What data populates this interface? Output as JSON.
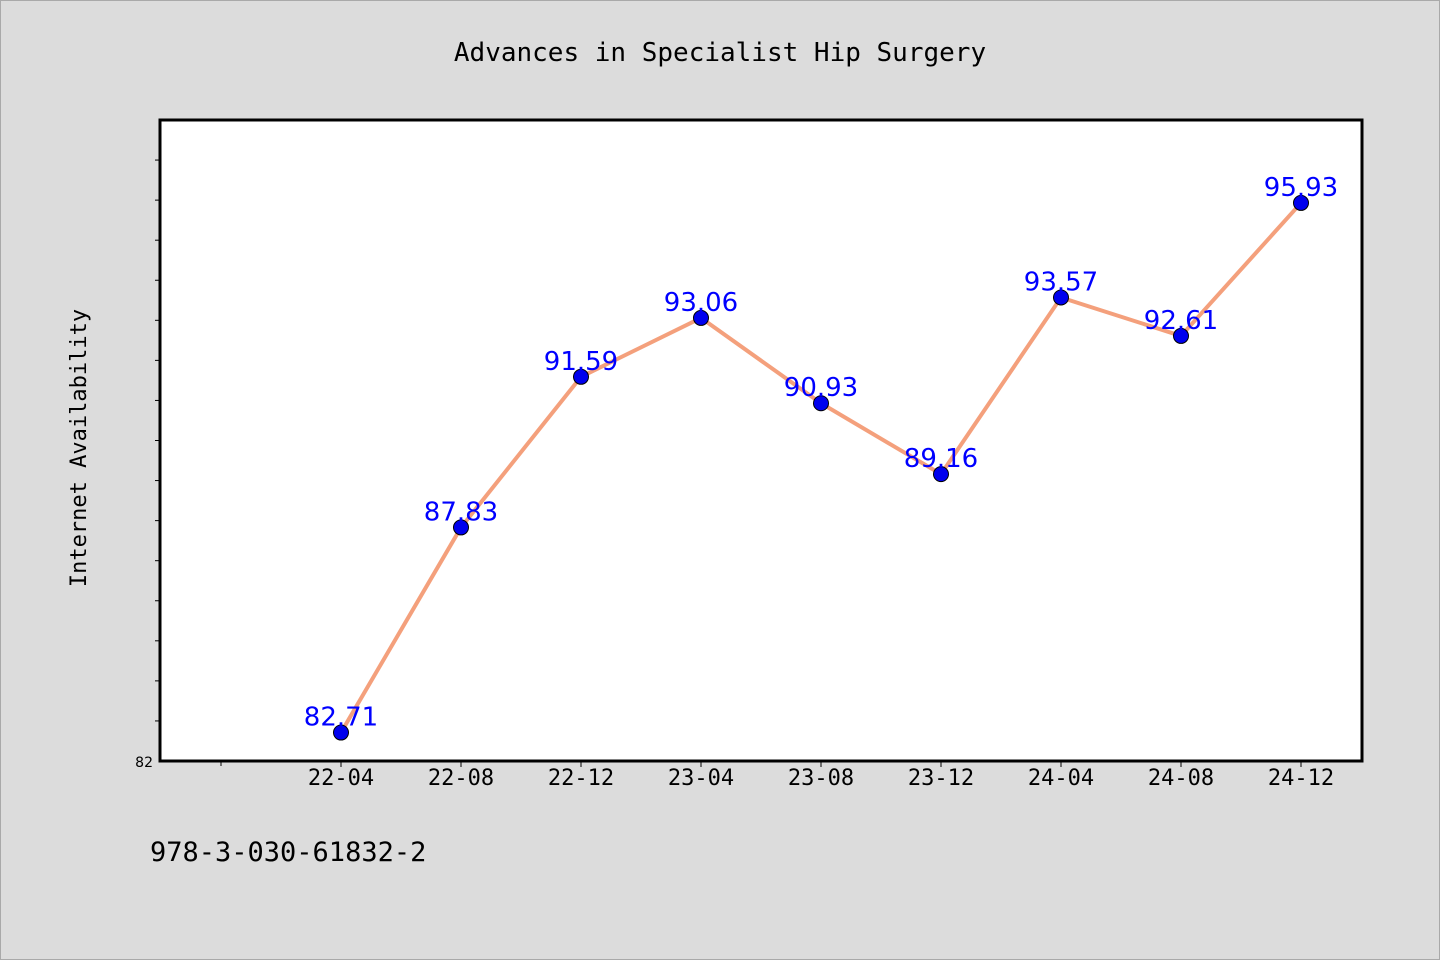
{
  "chart_data": {
    "type": "line",
    "title": "Advances in Specialist Hip Surgery",
    "xlabel": "",
    "ylabel": "Internet Availability",
    "categories": [
      "22-04",
      "22-08",
      "22-12",
      "23-04",
      "23-08",
      "23-12",
      "24-04",
      "24-08",
      "24-12"
    ],
    "series": [
      {
        "values": [
          82.71,
          87.83,
          91.59,
          93.06,
          90.93,
          89.16,
          93.57,
          92.61,
          95.93
        ],
        "data_labels": [
          "82.71",
          "87.83",
          "91.59",
          "93.06",
          "90.93",
          "89.16",
          "93.57",
          "92.61",
          "95.93"
        ],
        "line_color": "#f4a07c",
        "marker_color": "#0000ee",
        "label_color": "#0000ff"
      }
    ],
    "ylim": [
      82,
      98
    ],
    "y_tick_labels": [
      "82"
    ],
    "grid": false,
    "legend": "none"
  },
  "footer": {
    "isbn": "978-3-030-61832-2"
  }
}
